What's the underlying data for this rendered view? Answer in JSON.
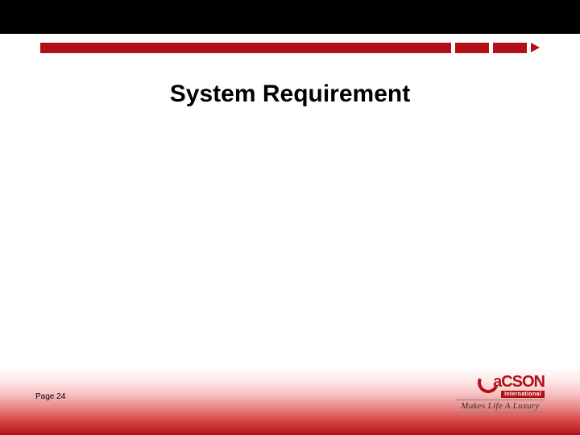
{
  "header": {
    "black_bar_color": "#000000",
    "red_bar_color": "#b11116"
  },
  "title": {
    "text": "System Requirement",
    "font_size": 30,
    "font_weight": "bold",
    "color": "#000000"
  },
  "footer": {
    "page_label": "Page 24",
    "page_label_fontsize": 10,
    "gradient_top": "#ffffff",
    "gradient_bottom": "#b11116"
  },
  "logo": {
    "brand_text": "aCSON",
    "brand_color": "#b11116",
    "subtext": "International",
    "subtext_bg": "#b11116",
    "subtext_color": "#ffffff",
    "tagline": "Makes Life A Luxury",
    "tagline_color": "#333333"
  }
}
